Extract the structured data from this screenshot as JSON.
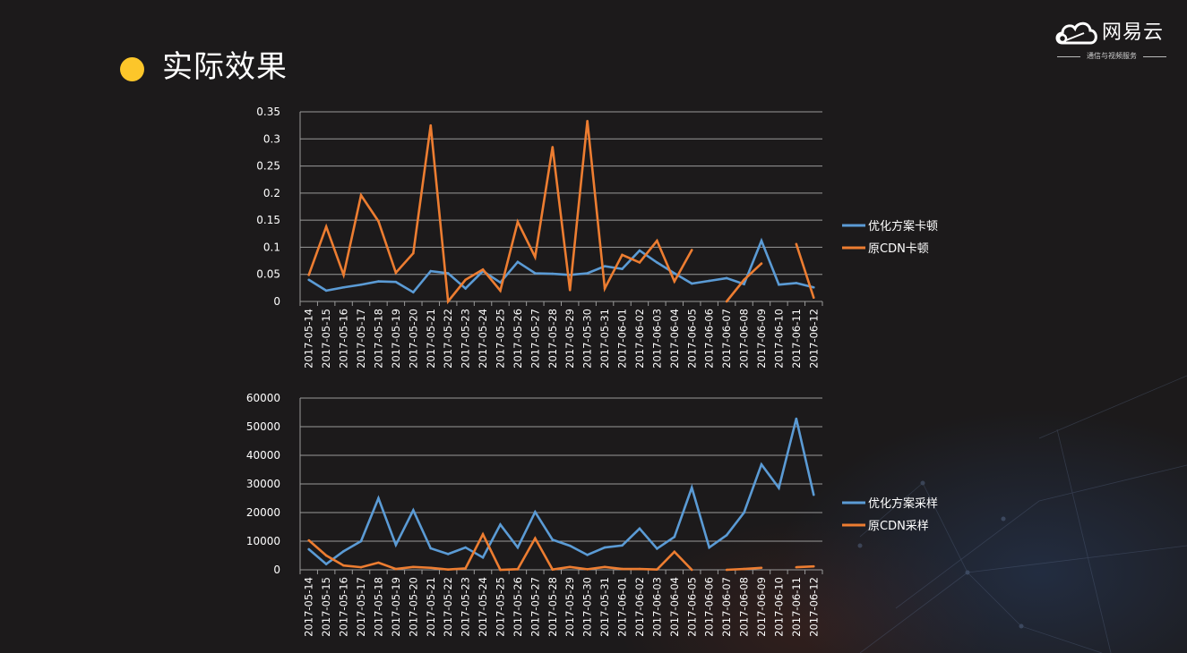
{
  "slide": {
    "title": "实际效果",
    "bullet_color": "#fcc62a",
    "logo": {
      "name": "网易云",
      "tagline": "通信与视频服务"
    }
  },
  "chart_data": [
    {
      "type": "line",
      "title": "",
      "xlabel": "",
      "ylabel": "",
      "ylim": [
        0,
        0.35
      ],
      "yticks": [
        "0",
        "0.05",
        "0.1",
        "0.15",
        "0.2",
        "0.25",
        "0.3",
        "0.35"
      ],
      "ytick_values": [
        0,
        0.05,
        0.1,
        0.15,
        0.2,
        0.25,
        0.3,
        0.35
      ],
      "grid": true,
      "legend": "right",
      "categories": [
        "2017-05-14",
        "2017-05-15",
        "2017-05-16",
        "2017-05-17",
        "2017-05-18",
        "2017-05-19",
        "2017-05-20",
        "2017-05-21",
        "2017-05-22",
        "2017-05-23",
        "2017-05-24",
        "2017-05-25",
        "2017-05-26",
        "2017-05-27",
        "2017-05-28",
        "2017-05-29",
        "2017-05-30",
        "2017-05-31",
        "2017-06-01",
        "2017-06-02",
        "2017-06-03",
        "2017-06-04",
        "2017-06-05",
        "2017-06-06",
        "2017-06-07",
        "2017-06-08",
        "2017-06-09",
        "2017-06-10",
        "2017-06-11",
        "2017-06-12"
      ],
      "series": [
        {
          "name": "优化方案卡顿",
          "color": "#5b9bd5",
          "values": [
            0.04,
            0.02,
            0.026,
            0.031,
            0.037,
            0.036,
            0.017,
            0.056,
            0.052,
            0.024,
            0.056,
            0.035,
            0.073,
            0.052,
            0.051,
            0.049,
            0.052,
            0.065,
            0.06,
            0.094,
            0.072,
            0.052,
            0.033,
            0.038,
            0.043,
            0.032,
            0.112,
            0.031,
            0.034,
            0.026
          ]
        },
        {
          "name": "原CDN卡顿",
          "color": "#ed7d31",
          "values": [
            0.049,
            0.138,
            0.049,
            0.196,
            0.148,
            0.053,
            0.089,
            0.325,
            0.0,
            0.04,
            0.059,
            0.02,
            0.147,
            0.082,
            0.285,
            0.021,
            0.333,
            0.024,
            0.086,
            0.072,
            0.112,
            0.037,
            0.095,
            null,
            0.0,
            0.04,
            0.07,
            null,
            0.106,
            0.007
          ]
        }
      ]
    },
    {
      "type": "line",
      "title": "",
      "xlabel": "",
      "ylabel": "",
      "ylim": [
        0,
        60000
      ],
      "yticks": [
        "0",
        "10000",
        "20000",
        "30000",
        "40000",
        "50000",
        "60000"
      ],
      "ytick_values": [
        0,
        10000,
        20000,
        30000,
        40000,
        50000,
        60000
      ],
      "grid": true,
      "legend": "right",
      "categories": [
        "2017-05-14",
        "2017-05-15",
        "2017-05-16",
        "2017-05-17",
        "2017-05-18",
        "2017-05-19",
        "2017-05-20",
        "2017-05-21",
        "2017-05-22",
        "2017-05-23",
        "2017-05-24",
        "2017-05-25",
        "2017-05-26",
        "2017-05-27",
        "2017-05-28",
        "2017-05-29",
        "2017-05-30",
        "2017-05-31",
        "2017-06-01",
        "2017-06-02",
        "2017-06-03",
        "2017-06-04",
        "2017-06-05",
        "2017-06-06",
        "2017-06-07",
        "2017-06-08",
        "2017-06-09",
        "2017-06-10",
        "2017-06-11",
        "2017-06-12"
      ],
      "series": [
        {
          "name": "优化方案采样",
          "color": "#5b9bd5",
          "values": [
            7200,
            2000,
            6500,
            10000,
            25000,
            8700,
            20800,
            7500,
            5500,
            7800,
            4300,
            15800,
            7800,
            20200,
            10500,
            8400,
            5200,
            7800,
            8500,
            14400,
            7400,
            11500,
            28700,
            7800,
            12100,
            20000,
            36800,
            28600,
            52800,
            26200
          ]
        },
        {
          "name": "原CDN采样",
          "color": "#ed7d31",
          "values": [
            10300,
            5000,
            1500,
            900,
            2500,
            300,
            1000,
            700,
            100,
            500,
            12400,
            0,
            200,
            11000,
            100,
            1000,
            200,
            1000,
            300,
            300,
            100,
            6300,
            0,
            null,
            0,
            300,
            700,
            null,
            900,
            1200
          ]
        }
      ]
    }
  ]
}
